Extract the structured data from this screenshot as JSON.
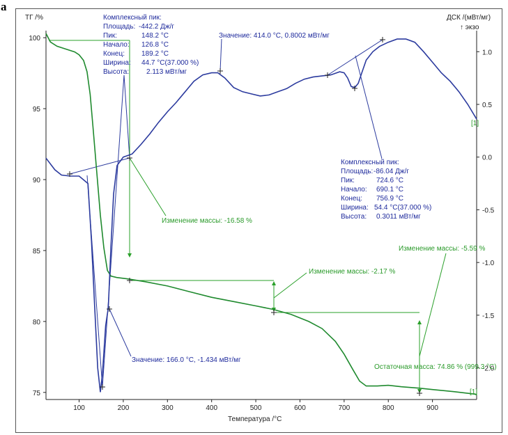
{
  "figure_label": "a",
  "colors": {
    "tg": "#1f8a2e",
    "dsc": "#2b3a9e",
    "annot_tg": "#2aa02a",
    "annot_dsc": "#1e2a9c",
    "axis": "#222222"
  },
  "chart_data": {
    "type": "line",
    "xlabel": "Температура /°C",
    "ylabel_left": "ТГ /%",
    "ylabel_right": "ДСК /(мВт/мг)",
    "ylabel_right_sub": "↑ экзо",
    "xlim": [
      25,
      1000
    ],
    "ylim_left": [
      74.5,
      100.5
    ],
    "ylim_right": [
      -2.3,
      1.2
    ],
    "x_ticks": [
      100,
      200,
      300,
      400,
      500,
      600,
      700,
      800,
      900
    ],
    "y_left_ticks": [
      75,
      80,
      85,
      90,
      95,
      100
    ],
    "y_right_ticks": [
      "-2.0",
      "-1.5",
      "-1.0",
      "-0.5",
      "0.0",
      "0.5",
      "1.0"
    ],
    "grid": false,
    "series": [
      {
        "name": "ТГ",
        "axis": "left",
        "points": [
          [
            25,
            100.3
          ],
          [
            35,
            99.7
          ],
          [
            50,
            99.4
          ],
          [
            70,
            99.2
          ],
          [
            90,
            99.0
          ],
          [
            100,
            98.8
          ],
          [
            110,
            98.4
          ],
          [
            118,
            97.6
          ],
          [
            125,
            96.0
          ],
          [
            132,
            93.5
          ],
          [
            140,
            90.5
          ],
          [
            148,
            87.5
          ],
          [
            156,
            85.2
          ],
          [
            164,
            83.6
          ],
          [
            172,
            83.2
          ],
          [
            185,
            83.1
          ],
          [
            210,
            83.0
          ],
          [
            250,
            82.8
          ],
          [
            300,
            82.5
          ],
          [
            350,
            82.1
          ],
          [
            400,
            81.7
          ],
          [
            450,
            81.4
          ],
          [
            500,
            81.1
          ],
          [
            540,
            80.85
          ],
          [
            580,
            80.5
          ],
          [
            620,
            80.0
          ],
          [
            650,
            79.5
          ],
          [
            680,
            78.6
          ],
          [
            700,
            77.7
          ],
          [
            720,
            76.6
          ],
          [
            735,
            75.8
          ],
          [
            750,
            75.45
          ],
          [
            775,
            75.45
          ],
          [
            800,
            75.5
          ],
          [
            830,
            75.4
          ],
          [
            870,
            75.3
          ],
          [
            900,
            75.2
          ],
          [
            950,
            75.05
          ],
          [
            990,
            74.9
          ],
          [
            1000,
            74.86
          ]
        ]
      },
      {
        "name": "ДСК",
        "axis": "right",
        "points": [
          [
            25,
            -0.01
          ],
          [
            45,
            -0.12
          ],
          [
            60,
            -0.17
          ],
          [
            80,
            -0.18
          ],
          [
            100,
            -0.18
          ],
          [
            120,
            -0.25
          ],
          [
            128,
            -0.8
          ],
          [
            135,
            -1.4
          ],
          [
            142,
            -2.0
          ],
          [
            148,
            -2.23
          ],
          [
            153,
            -2.05
          ],
          [
            160,
            -1.6
          ],
          [
            166,
            -1.43
          ],
          [
            172,
            -0.85
          ],
          [
            178,
            -0.35
          ],
          [
            186,
            -0.08
          ],
          [
            200,
            0.0
          ],
          [
            220,
            0.03
          ],
          [
            240,
            0.12
          ],
          [
            260,
            0.22
          ],
          [
            280,
            0.33
          ],
          [
            300,
            0.43
          ],
          [
            320,
            0.52
          ],
          [
            340,
            0.62
          ],
          [
            360,
            0.72
          ],
          [
            380,
            0.78
          ],
          [
            400,
            0.8
          ],
          [
            414,
            0.8
          ],
          [
            430,
            0.75
          ],
          [
            450,
            0.66
          ],
          [
            470,
            0.62
          ],
          [
            490,
            0.6
          ],
          [
            510,
            0.58
          ],
          [
            530,
            0.59
          ],
          [
            550,
            0.62
          ],
          [
            570,
            0.65
          ],
          [
            590,
            0.7
          ],
          [
            610,
            0.74
          ],
          [
            630,
            0.76
          ],
          [
            650,
            0.77
          ],
          [
            670,
            0.78
          ],
          [
            690,
            0.81
          ],
          [
            700,
            0.8
          ],
          [
            708,
            0.75
          ],
          [
            716,
            0.67
          ],
          [
            724,
            0.66
          ],
          [
            732,
            0.7
          ],
          [
            740,
            0.8
          ],
          [
            750,
            0.92
          ],
          [
            765,
            1.0
          ],
          [
            780,
            1.05
          ],
          [
            800,
            1.09
          ],
          [
            820,
            1.12
          ],
          [
            840,
            1.12
          ],
          [
            860,
            1.09
          ],
          [
            880,
            1.0
          ],
          [
            900,
            0.9
          ],
          [
            920,
            0.8
          ],
          [
            940,
            0.72
          ],
          [
            960,
            0.62
          ],
          [
            980,
            0.5
          ],
          [
            1000,
            0.36
          ]
        ]
      }
    ],
    "annotations": {
      "peak1": {
        "title": "Комплексный пик:",
        "rows": [
          {
            "label": "Площадь:",
            "value": "-442.2 Дж/г"
          },
          {
            "label": "Пик:",
            "value": "148.2 °C"
          },
          {
            "label": "Начало:",
            "value": "126.8 °C"
          },
          {
            "label": "Конец:",
            "value": "189.2 °C"
          },
          {
            "label": "Ширина:",
            "value": "44.7 °C(37.000 %)"
          },
          {
            "label": "Высота:",
            "value": "2.113 мВт/мг"
          }
        ]
      },
      "peak2": {
        "title": "Комплексный пик:",
        "rows": [
          {
            "label": "Площадь:",
            "value": "-86.04 Дж/г"
          },
          {
            "label": "Пик:",
            "value": "724.6 °C"
          },
          {
            "label": "Начало:",
            "value": "690.1 °C"
          },
          {
            "label": "Конец:",
            "value": "756.9 °C"
          },
          {
            "label": "Ширина:",
            "value": "54.4 °C(37.000 %)"
          },
          {
            "label": "Высота:",
            "value": "0.3011 мВт/мг"
          }
        ]
      },
      "value_top": "Значение: 414.0 °C, 0.8002 мВт/мг",
      "value_bottom": "Значение: 166.0 °C, -1.434 мВт/мг",
      "mass_change_1": "Изменение массы: -16.58 %",
      "mass_change_2": "Изменение массы: -2.17 %",
      "mass_change_3": "Изменение массы: -5.59 %",
      "residual_mass": "Остаточная масса: 74.86 % (999.3 °C)",
      "marker_a": "[1]",
      "marker_b": "[1]"
    }
  }
}
